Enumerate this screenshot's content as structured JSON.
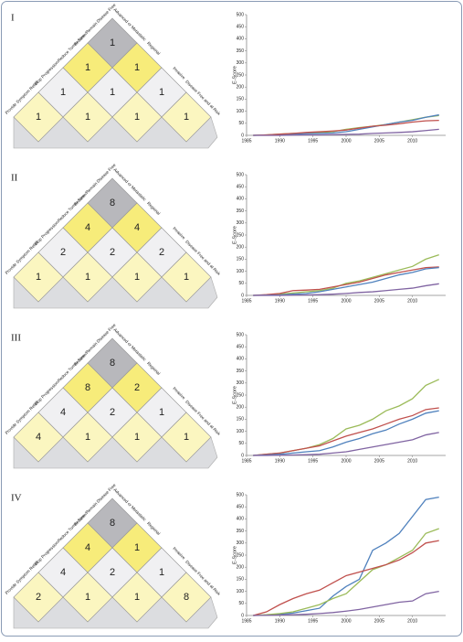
{
  "pyramid_labels": [
    "Provide Symptom Relief",
    "Stop Progression",
    "Reduce Tumor Size",
    "Become/Remain Disease Free",
    "Advanced or Metastatic",
    "Regional",
    "Invasive",
    "Disease Free and at Risk"
  ],
  "chart_data": [
    {
      "type": "line",
      "title": "I",
      "y_label": "E-Score",
      "cells": [
        [
          1
        ],
        [
          1,
          1
        ],
        [
          1,
          1,
          1
        ],
        [
          1,
          1,
          1,
          1
        ]
      ],
      "x": [
        1986,
        1988,
        1990,
        1992,
        1994,
        1996,
        1998,
        2000,
        2002,
        2004,
        2006,
        2008,
        2010,
        2012,
        2014
      ],
      "series": [
        {
          "color": "#9bbb59",
          "values": [
            0,
            2,
            5,
            8,
            10,
            12,
            15,
            25,
            32,
            38,
            45,
            55,
            65,
            75,
            82
          ]
        },
        {
          "color": "#4f81bd",
          "values": [
            0,
            1,
            3,
            5,
            7,
            8,
            10,
            15,
            25,
            35,
            45,
            55,
            62,
            75,
            85
          ]
        },
        {
          "color": "#c0504d",
          "values": [
            0,
            2,
            5,
            8,
            12,
            15,
            18,
            22,
            30,
            38,
            42,
            48,
            55,
            60,
            62
          ]
        },
        {
          "color": "#8064a2",
          "values": [
            0,
            0,
            0,
            1,
            2,
            2,
            3,
            4,
            5,
            8,
            10,
            12,
            15,
            20,
            25
          ]
        }
      ],
      "xlim": [
        1985,
        2015
      ],
      "xticks": [
        1985,
        1990,
        1995,
        2000,
        2005,
        2010
      ],
      "ylim": [
        0,
        500
      ],
      "yticks": [
        0,
        50,
        100,
        150,
        200,
        250,
        300,
        350,
        400,
        450,
        500
      ]
    },
    {
      "type": "line",
      "title": "II",
      "y_label": "E-Score",
      "cells": [
        [
          8
        ],
        [
          4,
          4
        ],
        [
          2,
          2,
          2
        ],
        [
          1,
          1,
          1,
          1
        ]
      ],
      "x": [
        1986,
        1988,
        1990,
        1992,
        1994,
        1996,
        1998,
        2000,
        2002,
        2004,
        2006,
        2008,
        2010,
        2012,
        2014
      ],
      "series": [
        {
          "color": "#9bbb59",
          "values": [
            0,
            2,
            5,
            10,
            15,
            20,
            30,
            50,
            60,
            75,
            90,
            105,
            120,
            150,
            168
          ]
        },
        {
          "color": "#c0504d",
          "values": [
            0,
            3,
            8,
            20,
            22,
            25,
            35,
            45,
            55,
            70,
            85,
            95,
            105,
            115,
            118
          ]
        },
        {
          "color": "#4f81bd",
          "values": [
            0,
            1,
            2,
            5,
            8,
            15,
            25,
            35,
            45,
            55,
            70,
            85,
            95,
            110,
            115
          ]
        },
        {
          "color": "#8064a2",
          "values": [
            0,
            0,
            0,
            1,
            2,
            3,
            5,
            8,
            12,
            15,
            20,
            25,
            30,
            40,
            48
          ]
        }
      ],
      "xlim": [
        1985,
        2015
      ],
      "xticks": [
        1985,
        1990,
        1995,
        2000,
        2005,
        2010
      ],
      "ylim": [
        0,
        500
      ],
      "yticks": [
        0,
        50,
        100,
        150,
        200,
        250,
        300,
        350,
        400,
        450,
        500
      ]
    },
    {
      "type": "line",
      "title": "III",
      "y_label": "E-Score",
      "cells": [
        [
          8
        ],
        [
          8,
          2
        ],
        [
          4,
          2,
          1
        ],
        [
          4,
          1,
          1,
          1
        ]
      ],
      "x": [
        1986,
        1988,
        1990,
        1992,
        1994,
        1996,
        1998,
        2000,
        2002,
        2004,
        2006,
        2008,
        2010,
        2012,
        2014
      ],
      "series": [
        {
          "color": "#9bbb59",
          "values": [
            0,
            5,
            10,
            20,
            30,
            45,
            70,
            110,
            125,
            150,
            185,
            205,
            235,
            290,
            315
          ]
        },
        {
          "color": "#c0504d",
          "values": [
            0,
            5,
            10,
            20,
            30,
            40,
            60,
            80,
            95,
            110,
            130,
            150,
            165,
            190,
            197
          ]
        },
        {
          "color": "#4f81bd",
          "values": [
            0,
            2,
            5,
            10,
            15,
            20,
            35,
            55,
            70,
            90,
            105,
            130,
            150,
            175,
            185
          ]
        },
        {
          "color": "#8064a2",
          "values": [
            0,
            0,
            1,
            2,
            3,
            5,
            10,
            15,
            25,
            35,
            45,
            55,
            65,
            85,
            95
          ]
        }
      ],
      "xlim": [
        1985,
        2015
      ],
      "xticks": [
        1985,
        1990,
        1995,
        2000,
        2005,
        2010
      ],
      "ylim": [
        0,
        500
      ],
      "yticks": [
        0,
        50,
        100,
        150,
        200,
        250,
        300,
        350,
        400,
        450,
        500
      ]
    },
    {
      "type": "line",
      "title": "IV",
      "y_label": "E-Score",
      "cells": [
        [
          8
        ],
        [
          4,
          1
        ],
        [
          4,
          2,
          1
        ],
        [
          2,
          1,
          1,
          8
        ]
      ],
      "x": [
        1986,
        1988,
        1990,
        1992,
        1994,
        1996,
        1998,
        2000,
        2002,
        2004,
        2006,
        2008,
        2010,
        2012,
        2014
      ],
      "series": [
        {
          "color": "#4f81bd",
          "values": [
            0,
            2,
            5,
            10,
            20,
            30,
            80,
            120,
            150,
            270,
            300,
            340,
            410,
            480,
            490
          ]
        },
        {
          "color": "#9bbb59",
          "values": [
            0,
            3,
            8,
            15,
            30,
            45,
            70,
            90,
            140,
            190,
            210,
            240,
            270,
            340,
            360
          ]
        },
        {
          "color": "#c0504d",
          "values": [
            0,
            15,
            45,
            70,
            90,
            105,
            135,
            165,
            180,
            195,
            210,
            230,
            260,
            300,
            310
          ]
        },
        {
          "color": "#8064a2",
          "values": [
            0,
            1,
            2,
            3,
            5,
            8,
            12,
            18,
            25,
            35,
            45,
            55,
            60,
            90,
            100
          ]
        }
      ],
      "xlim": [
        1985,
        2015
      ],
      "xticks": [
        1985,
        1990,
        1995,
        2000,
        2005,
        2010
      ],
      "ylim": [
        0,
        500
      ],
      "yticks": [
        0,
        50,
        100,
        150,
        200,
        250,
        300,
        350,
        400,
        450,
        500
      ]
    }
  ]
}
